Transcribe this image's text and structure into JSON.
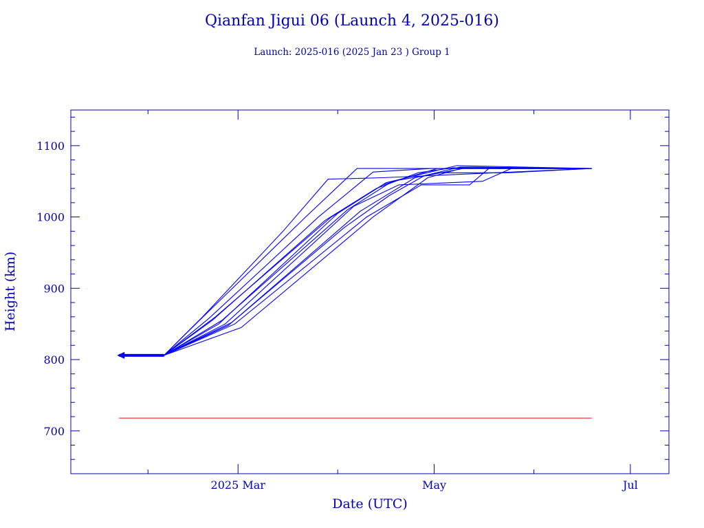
{
  "chart_data": {
    "type": "line",
    "title": "Qianfan Jigui 06 (Launch 4, 2025-016)",
    "subtitle": "Launch: 2025-016  (2025 Jan 23 )  Group 1",
    "xlabel": "Date (UTC)",
    "ylabel": "Height (km)",
    "x_axis": "date",
    "xlim": [
      "2025-01-08",
      "2025-07-13"
    ],
    "ylim": [
      640,
      1150
    ],
    "x_ticks": [
      {
        "date": "2025-03-01",
        "label": "2025 Mar"
      },
      {
        "date": "2025-05-01",
        "label": "May"
      },
      {
        "date": "2025-07-01",
        "label": "Jul"
      }
    ],
    "y_ticks": [
      700,
      800,
      900,
      1000,
      1100
    ],
    "grid": false,
    "colors": {
      "orbit": "#0000ff",
      "reference": "#ff0000",
      "text": "#0000b4"
    },
    "series": [
      {
        "points": [
          [
            "2025-01-23",
            806
          ],
          [
            "2025-02-06",
            806
          ],
          [
            "2025-02-18",
            860
          ],
          [
            "2025-03-15",
            980
          ],
          [
            "2025-03-29",
            1053
          ],
          [
            "2025-04-15",
            1055
          ],
          [
            "2025-06-19",
            1068
          ]
        ]
      },
      {
        "points": [
          [
            "2025-01-23",
            806
          ],
          [
            "2025-02-06",
            806
          ],
          [
            "2025-02-17",
            855
          ],
          [
            "2025-03-22",
            1000
          ],
          [
            "2025-04-07",
            1068
          ],
          [
            "2025-06-19",
            1068
          ]
        ]
      },
      {
        "points": [
          [
            "2025-01-23",
            806
          ],
          [
            "2025-02-06",
            806
          ],
          [
            "2025-02-20",
            858
          ],
          [
            "2025-03-26",
            1000
          ],
          [
            "2025-04-12",
            1063
          ],
          [
            "2025-04-30",
            1068
          ],
          [
            "2025-06-19",
            1068
          ]
        ]
      },
      {
        "points": [
          [
            "2025-01-23",
            806
          ],
          [
            "2025-02-06",
            806
          ],
          [
            "2025-02-22",
            860
          ],
          [
            "2025-03-30",
            1000
          ],
          [
            "2025-04-15",
            1045
          ],
          [
            "2025-05-02",
            1068
          ],
          [
            "2025-06-19",
            1068
          ]
        ]
      },
      {
        "points": [
          [
            "2025-01-23",
            806
          ],
          [
            "2025-02-06",
            806
          ],
          [
            "2025-02-23",
            850
          ],
          [
            "2025-04-01",
            1005
          ],
          [
            "2025-04-16",
            1048
          ],
          [
            "2025-05-08",
            1072
          ],
          [
            "2025-06-19",
            1068
          ]
        ]
      },
      {
        "points": [
          [
            "2025-01-23",
            806
          ],
          [
            "2025-02-06",
            806
          ],
          [
            "2025-02-24",
            855
          ],
          [
            "2025-04-04",
            1010
          ],
          [
            "2025-04-18",
            1050
          ],
          [
            "2025-05-03",
            1062
          ],
          [
            "2025-05-24",
            1062
          ],
          [
            "2025-06-19",
            1068
          ]
        ]
      },
      {
        "points": [
          [
            "2025-01-23",
            806
          ],
          [
            "2025-02-06",
            806
          ],
          [
            "2025-02-25",
            850
          ],
          [
            "2025-04-06",
            1015
          ],
          [
            "2025-04-20",
            1045
          ],
          [
            "2025-05-16",
            1050
          ],
          [
            "2025-05-25",
            1068
          ],
          [
            "2025-06-19",
            1068
          ]
        ]
      },
      {
        "points": [
          [
            "2025-01-23",
            806
          ],
          [
            "2025-02-06",
            806
          ],
          [
            "2025-02-26",
            848
          ],
          [
            "2025-04-08",
            1008
          ],
          [
            "2025-04-25",
            1055
          ],
          [
            "2025-05-10",
            1068
          ],
          [
            "2025-06-19",
            1068
          ]
        ]
      },
      {
        "points": [
          [
            "2025-01-23",
            806
          ],
          [
            "2025-02-06",
            806
          ],
          [
            "2025-02-28",
            850
          ],
          [
            "2025-04-10",
            1000
          ],
          [
            "2025-04-27",
            1045
          ],
          [
            "2025-05-12",
            1045
          ],
          [
            "2025-05-18",
            1068
          ],
          [
            "2025-06-19",
            1068
          ]
        ]
      },
      {
        "points": [
          [
            "2025-01-23",
            806
          ],
          [
            "2025-02-06",
            806
          ],
          [
            "2025-03-02",
            845
          ],
          [
            "2025-04-12",
            1000
          ],
          [
            "2025-04-29",
            1055
          ],
          [
            "2025-05-11",
            1070
          ],
          [
            "2025-06-19",
            1068
          ]
        ]
      },
      {
        "points": [
          [
            "2025-01-23",
            806
          ],
          [
            "2025-02-06",
            806
          ],
          [
            "2025-02-21",
            855
          ],
          [
            "2025-03-28",
            995
          ],
          [
            "2025-04-13",
            1040
          ],
          [
            "2025-04-26",
            1062
          ],
          [
            "2025-05-07",
            1069
          ],
          [
            "2025-06-19",
            1068
          ]
        ]
      },
      {
        "points": [
          [
            "2025-01-23",
            806
          ],
          [
            "2025-02-06",
            806
          ],
          [
            "2025-02-27",
            852
          ],
          [
            "2025-04-03",
            985
          ],
          [
            "2025-04-17",
            1030
          ],
          [
            "2025-04-28",
            1058
          ],
          [
            "2025-05-09",
            1070
          ],
          [
            "2025-06-19",
            1068
          ]
        ]
      }
    ],
    "reference_line": {
      "y": 718,
      "x": [
        "2025-01-23",
        "2025-06-19"
      ]
    },
    "start_marker": {
      "date": "2025-01-23",
      "y": 806
    }
  }
}
